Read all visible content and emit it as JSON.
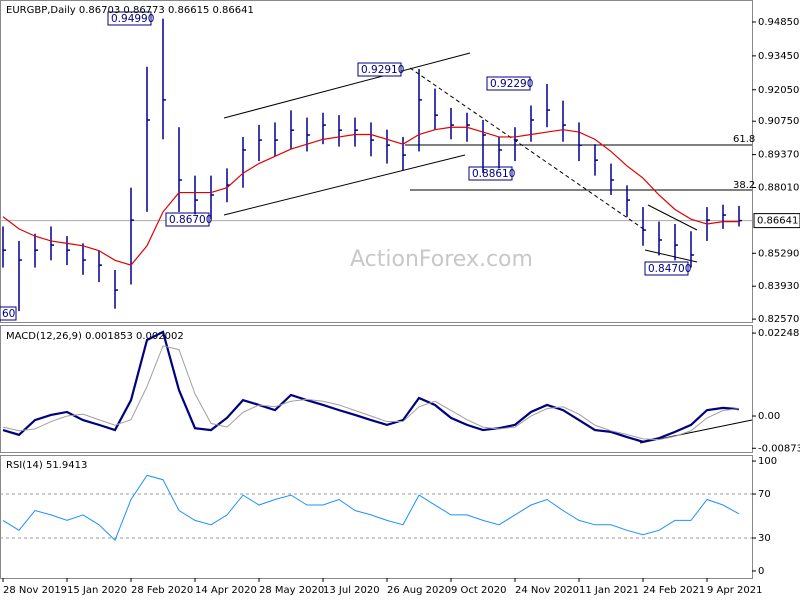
{
  "chart_data": [
    {
      "type": "stock",
      "title": "EURGBP,Daily  0.86703 0.86773 0.86615 0.86641",
      "categories": [
        "28 Nov 2019",
        null,
        null,
        null,
        "15 Jan 2020",
        null,
        null,
        null,
        "28 Feb 2020",
        null,
        null,
        null,
        "14 Apr 2020",
        null,
        null,
        null,
        "28 May 2020",
        null,
        null,
        null,
        "13 Jul 2020",
        null,
        null,
        null,
        "26 Aug 2020",
        null,
        null,
        null,
        "9 Oct 2020",
        null,
        null,
        null,
        "24 Nov 2020",
        null,
        null,
        null,
        "11 Jan 2021",
        null,
        null,
        null,
        "24 Feb 2021",
        null,
        null,
        null,
        "9 Apr 2021",
        null,
        null
      ],
      "high": [
        0.864,
        0.858,
        0.861,
        0.864,
        0.86,
        0.857,
        0.854,
        0.846,
        0.88,
        0.93,
        0.9499,
        0.905,
        0.885,
        0.885,
        0.888,
        0.901,
        0.906,
        0.907,
        0.912,
        0.909,
        0.911,
        0.91,
        0.909,
        0.907,
        0.904,
        0.901,
        0.9291,
        0.921,
        0.913,
        0.911,
        0.908,
        0.901,
        0.905,
        0.914,
        0.9229,
        0.916,
        0.907,
        0.898,
        0.89,
        0.881,
        0.872,
        0.866,
        0.865,
        0.862,
        0.872,
        0.873,
        0.8725
      ],
      "low": [
        0.847,
        0.829,
        0.847,
        0.85,
        0.848,
        0.844,
        0.841,
        0.83,
        0.84,
        0.87,
        0.9,
        0.87,
        0.869,
        0.867,
        0.874,
        0.88,
        0.891,
        0.893,
        0.896,
        0.895,
        0.898,
        0.897,
        0.897,
        0.893,
        0.89,
        0.887,
        0.895,
        0.904,
        0.9,
        0.899,
        0.8861,
        0.888,
        0.891,
        0.899,
        0.905,
        0.899,
        0.891,
        0.885,
        0.877,
        0.868,
        0.856,
        0.852,
        0.85,
        0.847,
        0.858,
        0.863,
        0.864
      ],
      "close": [
        0.8542,
        0.8501,
        0.8542,
        0.8563,
        0.8542,
        0.8501,
        0.848,
        0.8377,
        0.8666,
        0.908,
        0.9163,
        0.8832,
        0.8749,
        0.877,
        0.8811,
        0.8956,
        0.8997,
        0.8997,
        0.9038,
        0.9018,
        0.9059,
        0.9038,
        0.9038,
        0.8997,
        0.8976,
        0.8935,
        0.9163,
        0.91,
        0.9059,
        0.9059,
        0.9018,
        0.8956,
        0.8997,
        0.908,
        0.9121,
        0.9059,
        0.8976,
        0.8914,
        0.8832,
        0.8749,
        0.8625,
        0.8584,
        0.8563,
        0.8522,
        0.8666,
        0.8687,
        0.86641
      ],
      "color": "#000090",
      "ma": {
        "color": "#e00000",
        "values": [
          0.868,
          0.863,
          0.86,
          0.858,
          0.857,
          0.856,
          0.854,
          0.85,
          0.848,
          0.856,
          0.87,
          0.878,
          0.878,
          0.878,
          0.88,
          0.886,
          0.89,
          0.893,
          0.896,
          0.898,
          0.9,
          0.901,
          0.902,
          0.902,
          0.9,
          0.898,
          0.902,
          0.904,
          0.905,
          0.905,
          0.903,
          0.901,
          0.901,
          0.902,
          0.903,
          0.904,
          0.903,
          0.9,
          0.895,
          0.889,
          0.884,
          0.877,
          0.871,
          0.867,
          0.865,
          0.866,
          0.866
        ]
      },
      "ylim": [
        0.8245,
        0.9576
      ],
      "yticks": [
        {
          "value": 0.9485,
          "label": "0.94850"
        },
        {
          "value": 0.9345,
          "label": "0.93450"
        },
        {
          "value": 0.9205,
          "label": "0.92050"
        },
        {
          "value": 0.9075,
          "label": "0.90750"
        },
        {
          "value": 0.8937,
          "label": "0.89370"
        },
        {
          "value": 0.8801,
          "label": "0.88010"
        },
        {
          "value": 0.8529,
          "label": "0.85290"
        },
        {
          "value": 0.8393,
          "label": "0.83930"
        },
        {
          "value": 0.8257,
          "label": "0.82570"
        }
      ],
      "last_price": {
        "value": 0.86641,
        "label": "0.86641"
      },
      "annotations": [
        "0.94990",
        "0.92910",
        "0.92290",
        "0.88610",
        "0.86700",
        "0.84700",
        "60"
      ],
      "fib_labels": [
        "61.8",
        "38.2"
      ],
      "watermark": "ActionForex.com"
    },
    {
      "type": "line",
      "title": "MACD(12,26,9) 0.001853 0.002002",
      "series": [
        {
          "color": "#000080",
          "values": [
            -0.0038,
            -0.0051,
            -0.0011,
            0.0003,
            0.0011,
            -0.0011,
            -0.0024,
            -0.0038,
            0.0043,
            0.0206,
            0.0228,
            0.007,
            -0.0033,
            -0.0038,
            -0.0005,
            0.0043,
            0.003,
            0.0016,
            0.0057,
            0.0043,
            0.003,
            0.0016,
            0.0003,
            -0.0011,
            -0.0024,
            -0.0011,
            0.0049,
            0.003,
            -0.0005,
            -0.0024,
            -0.0038,
            -0.0033,
            -0.0024,
            0.0011,
            0.003,
            0.0016,
            -0.0011,
            -0.0038,
            -0.0043,
            -0.0057,
            -0.007,
            -0.006,
            -0.0043,
            -0.0024,
            0.0016,
            0.0022,
            0.001853
          ]
        },
        {
          "color": "#a0a0a0",
          "values": [
            -0.003,
            -0.004,
            -0.0035,
            -0.0015,
            0.0,
            0.0005,
            -0.001,
            -0.0025,
            -0.001,
            0.008,
            0.019,
            0.018,
            0.006,
            -0.002,
            -0.003,
            0.001,
            0.003,
            0.0025,
            0.004,
            0.0045,
            0.004,
            0.003,
            0.0015,
            0.0,
            -0.0015,
            -0.0015,
            0.0025,
            0.004,
            0.0015,
            -0.001,
            -0.003,
            -0.0035,
            -0.003,
            0.0,
            0.002,
            0.0025,
            0.0005,
            -0.0025,
            -0.004,
            -0.005,
            -0.0062,
            -0.0064,
            -0.0055,
            -0.004,
            -0.0005,
            0.0015,
            0.002002
          ]
        }
      ],
      "ylim": [
        -0.00975,
        0.0244
      ],
      "yticks": [
        0.022482,
        {
          "value": 0,
          "label": "0.00"
        },
        -0.008736
      ]
    },
    {
      "type": "line",
      "title": "RSI(14) 51.9413",
      "series": [
        {
          "color": "#1e90ff",
          "values": [
            46,
            37,
            55,
            51,
            46,
            51,
            42,
            28,
            65,
            87,
            83,
            55,
            46,
            42,
            51,
            69,
            60,
            65,
            69,
            60,
            60,
            65,
            55,
            51,
            46,
            42,
            69,
            60,
            51,
            51,
            46,
            42,
            51,
            60,
            65,
            55,
            46,
            42,
            42,
            37,
            33,
            37,
            46,
            46,
            65,
            60,
            51.9413
          ]
        }
      ],
      "ylim": [
        -6.4,
        105.5
      ],
      "yticks": [
        100,
        70,
        30,
        0
      ],
      "levels": [
        70,
        30
      ]
    }
  ]
}
